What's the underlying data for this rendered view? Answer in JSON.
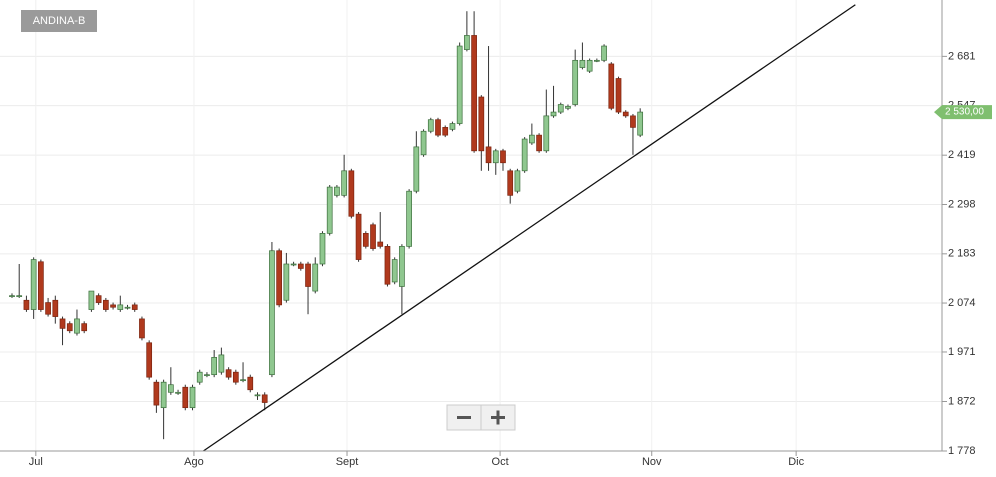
{
  "chart_data": {
    "type": "candlestick",
    "title": "ANDINA-B",
    "log_scale": true,
    "grid": true,
    "up_color": "#8fc78f",
    "down_color": "#b0391d",
    "categories": [
      null,
      null,
      null,
      null,
      null,
      null,
      null,
      null,
      null,
      null,
      null,
      null,
      null,
      null,
      null,
      null,
      null,
      null,
      null,
      null,
      null,
      null,
      null,
      null,
      null,
      null,
      null,
      null,
      null,
      null,
      null,
      null,
      null,
      null,
      null,
      null,
      null,
      null,
      null,
      null,
      null,
      null,
      null,
      null,
      null,
      null,
      null,
      null,
      null,
      null,
      null,
      null,
      null,
      null,
      null,
      null,
      null,
      null,
      null,
      null,
      null,
      null,
      null,
      null,
      null,
      null,
      null,
      null,
      null,
      null,
      null,
      null,
      null,
      null,
      null,
      null,
      null,
      null,
      null,
      null,
      null,
      null,
      null,
      null,
      null,
      null,
      null,
      null
    ],
    "open": [
      2090,
      2090,
      2080,
      2060,
      2165,
      2075,
      2080,
      2040,
      2030,
      2010,
      2030,
      2060,
      2090,
      2080,
      2070,
      2060,
      2065,
      2070,
      2040,
      1990,
      1910,
      1860,
      1890,
      1890,
      1900,
      1860,
      1910,
      1925,
      1925,
      1930,
      1935,
      1930,
      1915,
      1920,
      1885,
      1885,
      1925,
      2190,
      2080,
      2160,
      2160,
      2160,
      2100,
      2160,
      2230,
      2320,
      2320,
      2380,
      2275,
      2230,
      2250,
      2210,
      2200,
      2120,
      2110,
      2200,
      2330,
      2420,
      2480,
      2510,
      2490,
      2485,
      2500,
      2700,
      2740,
      2570,
      2440,
      2400,
      2430,
      2380,
      2330,
      2380,
      2450,
      2470,
      2430,
      2520,
      2530,
      2540,
      2550,
      2650,
      2640,
      2670,
      2670,
      2660,
      2620,
      2530,
      2520,
      2470
    ],
    "high": [
      2095,
      2160,
      2090,
      2175,
      2170,
      2085,
      2090,
      2045,
      2035,
      2060,
      2035,
      2100,
      2095,
      2085,
      2075,
      2090,
      2070,
      2075,
      2045,
      1995,
      1915,
      1915,
      1940,
      1895,
      1905,
      1905,
      1935,
      1930,
      1975,
      1980,
      1940,
      1935,
      1950,
      1925,
      1890,
      1890,
      2210,
      2195,
      2185,
      2165,
      2165,
      2165,
      2175,
      2235,
      2345,
      2345,
      2420,
      2385,
      2280,
      2235,
      2255,
      2280,
      2205,
      2175,
      2205,
      2335,
      2480,
      2485,
      2515,
      2515,
      2495,
      2505,
      2720,
      2810,
      2810,
      2575,
      2710,
      2435,
      2435,
      2385,
      2385,
      2465,
      2500,
      2475,
      2590,
      2600,
      2555,
      2550,
      2700,
      2720,
      2675,
      2675,
      2715,
      2665,
      2625,
      2535,
      2525,
      2540
    ],
    "low": [
      2085,
      2085,
      2055,
      2040,
      2055,
      2045,
      2030,
      1985,
      2010,
      2005,
      2010,
      2055,
      2070,
      2055,
      2060,
      2055,
      2060,
      2055,
      1995,
      1915,
      1850,
      1800,
      1885,
      1885,
      1855,
      1855,
      1905,
      1920,
      1920,
      1925,
      1915,
      1905,
      1910,
      1890,
      1875,
      1855,
      1920,
      2065,
      2075,
      2155,
      2145,
      2050,
      2095,
      2155,
      2225,
      2315,
      2315,
      2265,
      2165,
      2195,
      2190,
      2195,
      2110,
      2115,
      2050,
      2195,
      2325,
      2415,
      2475,
      2465,
      2465,
      2480,
      2495,
      2695,
      2425,
      2380,
      2380,
      2370,
      2380,
      2300,
      2325,
      2375,
      2445,
      2425,
      2425,
      2515,
      2525,
      2535,
      2545,
      2645,
      2635,
      2665,
      2665,
      2535,
      2525,
      2515,
      2420,
      2465
    ],
    "close": [
      2090,
      2090,
      2060,
      2170,
      2060,
      2050,
      2045,
      2020,
      2015,
      2040,
      2015,
      2100,
      2075,
      2060,
      2065,
      2070,
      2065,
      2060,
      2000,
      1920,
      1865,
      1910,
      1905,
      1890,
      1860,
      1900,
      1930,
      1925,
      1960,
      1965,
      1920,
      1910,
      1915,
      1895,
      1885,
      1870,
      2190,
      2070,
      2160,
      2160,
      2150,
      2110,
      2160,
      2230,
      2340,
      2340,
      2380,
      2270,
      2170,
      2200,
      2195,
      2200,
      2115,
      2170,
      2200,
      2330,
      2440,
      2480,
      2510,
      2470,
      2470,
      2500,
      2710,
      2740,
      2430,
      2430,
      2400,
      2430,
      2400,
      2320,
      2380,
      2460,
      2470,
      2430,
      2520,
      2530,
      2550,
      2545,
      2670,
      2670,
      2670,
      2670,
      2710,
      2540,
      2530,
      2520,
      2490,
      2530
    ],
    "xlim": [
      -1.66,
      128.8
    ],
    "xticks": [
      {
        "value": 3.3,
        "label": "Jul"
      },
      {
        "value": 25.2,
        "label": "Ago"
      },
      {
        "value": 46.4,
        "label": "Sept"
      },
      {
        "value": 67.6,
        "label": "Oct"
      },
      {
        "value": 88.6,
        "label": "Nov"
      },
      {
        "value": 108.6,
        "label": "Dic"
      }
    ],
    "ylim": [
      1778,
      2843
    ],
    "yticks": [
      {
        "value": 1778,
        "label": "1 778"
      },
      {
        "value": 1872,
        "label": "1 872"
      },
      {
        "value": 1971,
        "label": "1 971"
      },
      {
        "value": 2074,
        "label": "2 074"
      },
      {
        "value": 2183,
        "label": "2 183"
      },
      {
        "value": 2298,
        "label": "2 298"
      },
      {
        "value": 2419,
        "label": "2 419"
      },
      {
        "value": 2547,
        "label": "2 547"
      },
      {
        "value": 2681,
        "label": "2 681"
      }
    ],
    "trendline": {
      "x": [
        26.5,
        116.8
      ],
      "y": [
        1778,
        2829
      ]
    },
    "current": {
      "value": 2530,
      "label": "2 530,00"
    }
  }
}
